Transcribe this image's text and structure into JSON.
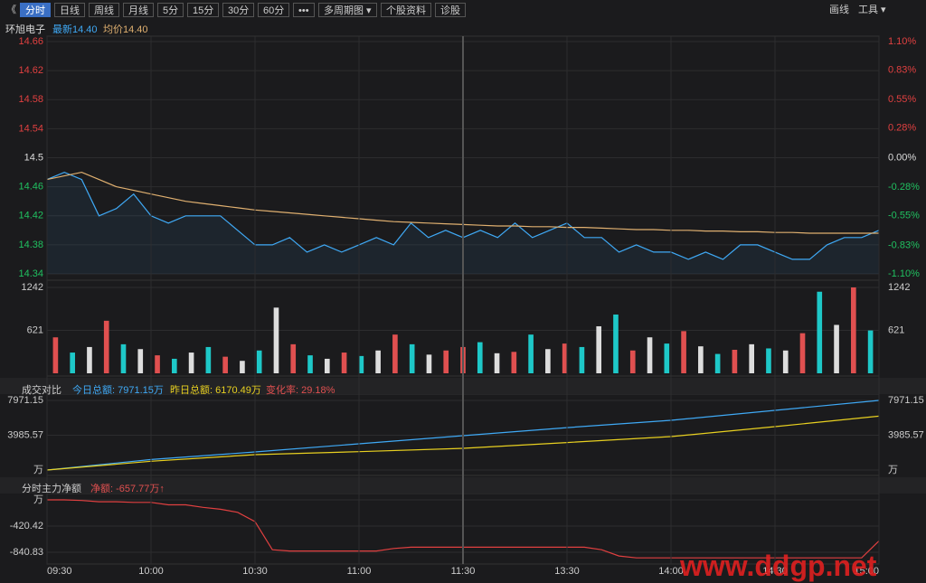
{
  "toolbar": {
    "back": "《",
    "tabs": [
      "分时",
      "日线",
      "周线",
      "月线",
      "5分",
      "15分",
      "30分",
      "60分",
      "•••",
      "多周期图 ▾",
      "个股资料",
      "诊股"
    ],
    "right": [
      "画线",
      "工具 ▾"
    ]
  },
  "header": {
    "stock": "环旭电子",
    "latest": "最新14.40",
    "avg": "均价14.40"
  },
  "volume_compare": {
    "title": "成交对比",
    "today": "今日总额: 7971.15万",
    "yesterday": "昨日总额: 6170.49万",
    "change": "变化率: 29.18%"
  },
  "net_flow": {
    "title": "分时主力净额",
    "net": "净额: -657.77万↑"
  },
  "watermark": "www.ddgp.net",
  "chart_data": [
    {
      "type": "line",
      "ylim": [
        14.34,
        14.66
      ],
      "yticks": [
        14.66,
        14.62,
        14.58,
        14.54,
        14.5,
        14.46,
        14.42,
        14.38,
        14.34
      ],
      "y2lim": [
        -1.1,
        1.1
      ],
      "y2ticks": [
        {
          "value": 1.1,
          "label": "1.10%"
        },
        {
          "value": 0.83,
          "label": "0.83%"
        },
        {
          "value": 0.55,
          "label": "0.55%"
        },
        {
          "value": 0.28,
          "label": "0.28%"
        },
        {
          "value": 0,
          "label": "0.00%"
        },
        {
          "value": -0.28,
          "label": "-0.28%"
        },
        {
          "value": -0.55,
          "label": "-0.55%"
        },
        {
          "value": -0.83,
          "label": "-0.83%"
        },
        {
          "value": -1.1,
          "label": "-1.10%"
        }
      ],
      "series": [
        {
          "color": "#3fa9f5",
          "values": [
            14.47,
            14.48,
            14.47,
            14.42,
            14.43,
            14.45,
            14.42,
            14.41,
            14.42,
            14.42,
            14.42,
            14.4,
            14.38,
            14.38,
            14.39,
            14.37,
            14.38,
            14.37,
            14.38,
            14.39,
            14.38,
            14.41,
            14.39,
            14.4,
            14.39,
            14.4,
            14.39,
            14.41,
            14.39,
            14.4,
            14.41,
            14.39,
            14.39,
            14.37,
            14.38,
            14.37,
            14.37,
            14.36,
            14.37,
            14.36,
            14.38,
            14.38,
            14.37,
            14.36,
            14.36,
            14.38,
            14.39,
            14.39,
            14.4
          ]
        },
        {
          "color": "#e0b070",
          "values": [
            14.47,
            14.475,
            14.48,
            14.47,
            14.46,
            14.455,
            14.45,
            14.445,
            14.44,
            14.437,
            14.434,
            14.431,
            14.428,
            14.426,
            14.424,
            14.422,
            14.42,
            14.418,
            14.416,
            14.414,
            14.412,
            14.411,
            14.41,
            14.409,
            14.408,
            14.407,
            14.406,
            14.406,
            14.405,
            14.405,
            14.404,
            14.404,
            14.403,
            14.402,
            14.401,
            14.401,
            14.4,
            14.4,
            14.399,
            14.399,
            14.398,
            14.398,
            14.397,
            14.397,
            14.396,
            14.396,
            14.396,
            14.396,
            14.396
          ]
        }
      ]
    },
    {
      "type": "bar",
      "ylim": [
        0,
        1242
      ],
      "yticks": [
        1242,
        621
      ],
      "values": [
        520,
        300,
        380,
        760,
        420,
        350,
        260,
        210,
        300,
        380,
        240,
        180,
        330,
        950,
        420,
        260,
        210,
        300,
        250,
        330,
        560,
        420,
        270,
        330,
        380,
        450,
        290,
        310,
        560,
        350,
        430,
        380,
        680,
        850,
        330,
        520,
        430,
        610,
        390,
        280,
        340,
        420,
        360,
        330,
        580,
        1180,
        700,
        1242,
        620
      ],
      "bar_colors": [
        "#e05050",
        "#1ec8c8",
        "#dddddd",
        "#e05050",
        "#1ec8c8",
        "#dddddd",
        "#e05050",
        "#1ec8c8",
        "#dddddd",
        "#1ec8c8",
        "#e05050",
        "#dddddd",
        "#1ec8c8",
        "#dddddd",
        "#e05050",
        "#1ec8c8",
        "#dddddd",
        "#e05050",
        "#1ec8c8",
        "#dddddd",
        "#e05050",
        "#1ec8c8",
        "#dddddd",
        "#e05050",
        "#e05050",
        "#1ec8c8",
        "#dddddd",
        "#e05050",
        "#1ec8c8",
        "#dddddd",
        "#e05050",
        "#1ec8c8",
        "#dddddd",
        "#1ec8c8",
        "#e05050",
        "#dddddd",
        "#1ec8c8",
        "#e05050",
        "#dddddd",
        "#1ec8c8",
        "#e05050",
        "#dddddd",
        "#1ec8c8",
        "#dddddd",
        "#e05050",
        "#1ec8c8",
        "#dddddd",
        "#e05050",
        "#1ec8c8"
      ]
    },
    {
      "type": "line",
      "ylim": [
        0,
        7971.15
      ],
      "yticks": [
        {
          "value": 7971.15,
          "label": "7971.15"
        },
        {
          "value": 3985.57,
          "label": "3985.57"
        },
        {
          "value": 0,
          "label": "万"
        }
      ],
      "series": [
        {
          "color": "#3fa9f5",
          "values": [
            0,
            1200,
            2070,
            3000,
            3930,
            4850,
            5690,
            6830,
            7971.15
          ]
        },
        {
          "color": "#e8d020",
          "values": [
            0,
            1000,
            1760,
            2100,
            2480,
            3150,
            3830,
            4970,
            6170.49
          ]
        }
      ]
    },
    {
      "type": "line",
      "ylim": [
        -1000,
        0
      ],
      "yticks": [
        {
          "value": 0,
          "label": "万"
        },
        -420.42,
        -840.83
      ],
      "xticks": [
        "09:30",
        "10:00",
        "10:30",
        "11:00",
        "11:30",
        "13:30",
        "14:00",
        "14:30",
        "15:00"
      ],
      "series": [
        {
          "color": "#e04040",
          "values": [
            0,
            0,
            -10,
            -30,
            -30,
            -40,
            -40,
            -80,
            -80,
            -120,
            -150,
            -200,
            -350,
            -800,
            -820,
            -820,
            -820,
            -820,
            -820,
            -820,
            -780,
            -760,
            -760,
            -760,
            -760,
            -760,
            -760,
            -760,
            -760,
            -760,
            -760,
            -760,
            -800,
            -900,
            -930,
            -930,
            -930,
            -930,
            -930,
            -930,
            -930,
            -930,
            -930,
            -930,
            -930,
            -930,
            -930,
            -930,
            -657.77
          ]
        }
      ]
    }
  ]
}
